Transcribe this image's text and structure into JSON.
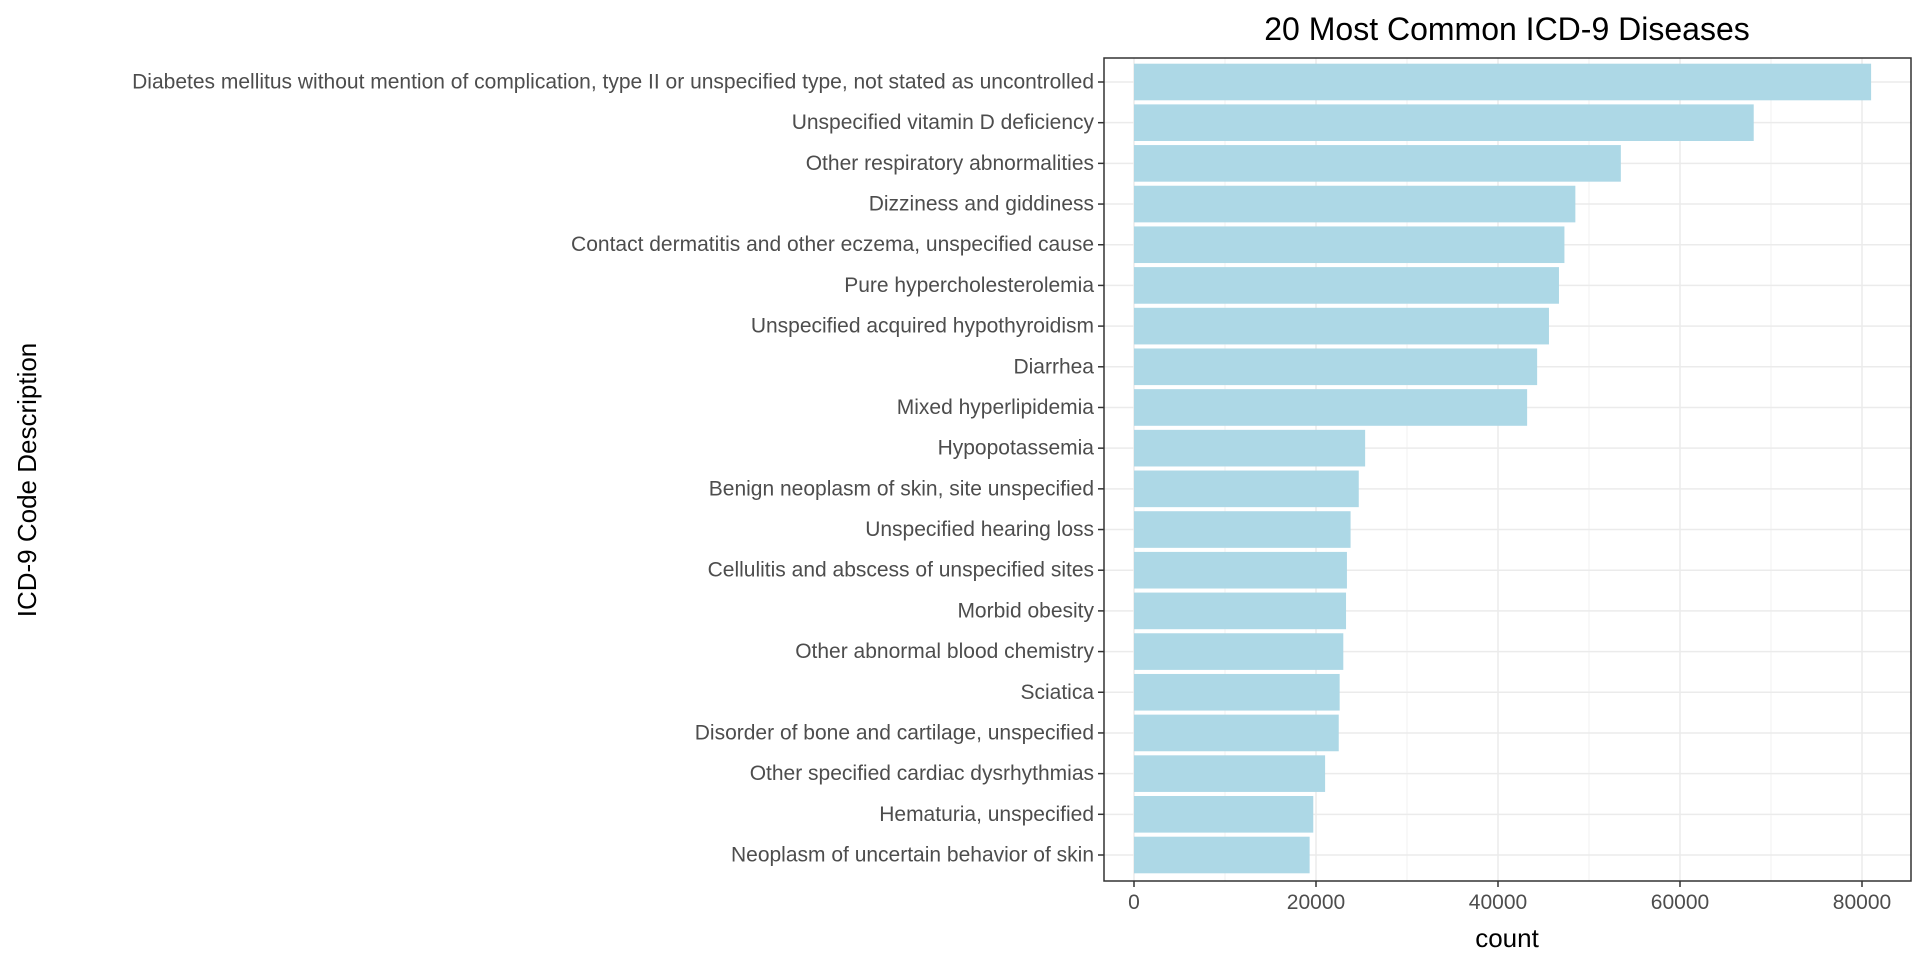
{
  "chart_data": {
    "type": "bar",
    "orientation": "horizontal",
    "title": "20 Most Common ICD-9 Diseases",
    "xlabel": "count",
    "ylabel": "ICD-9 Code Description",
    "xlim": [
      0,
      81000
    ],
    "x_ticks": [
      0,
      20000,
      40000,
      60000,
      80000
    ],
    "x_tick_labels": [
      "0",
      "20000",
      "40000",
      "60000",
      "80000"
    ],
    "grid": true,
    "bar_color": "#add8e6",
    "categories": [
      "Diabetes mellitus without mention of complication, type II or unspecified type, not stated as uncontrolled",
      "Unspecified vitamin D deficiency",
      "Other respiratory abnormalities",
      "Dizziness and giddiness",
      "Contact dermatitis and other eczema, unspecified cause",
      "Pure hypercholesterolemia",
      "Unspecified acquired hypothyroidism",
      "Diarrhea",
      "Mixed hyperlipidemia",
      "Hypopotassemia",
      "Benign neoplasm of skin, site unspecified",
      "Unspecified hearing loss",
      "Cellulitis and abscess of unspecified sites",
      "Morbid obesity",
      "Other abnormal blood chemistry",
      "Sciatica",
      "Disorder of bone and cartilage, unspecified",
      "Other specified cardiac dysrhythmias",
      "Hematuria, unspecified",
      "Neoplasm of uncertain behavior of skin"
    ],
    "values": [
      81000,
      68100,
      53500,
      48500,
      47300,
      46700,
      45600,
      44300,
      43200,
      25400,
      24700,
      23800,
      23400,
      23300,
      23000,
      22600,
      22500,
      21000,
      19700,
      19300
    ]
  }
}
